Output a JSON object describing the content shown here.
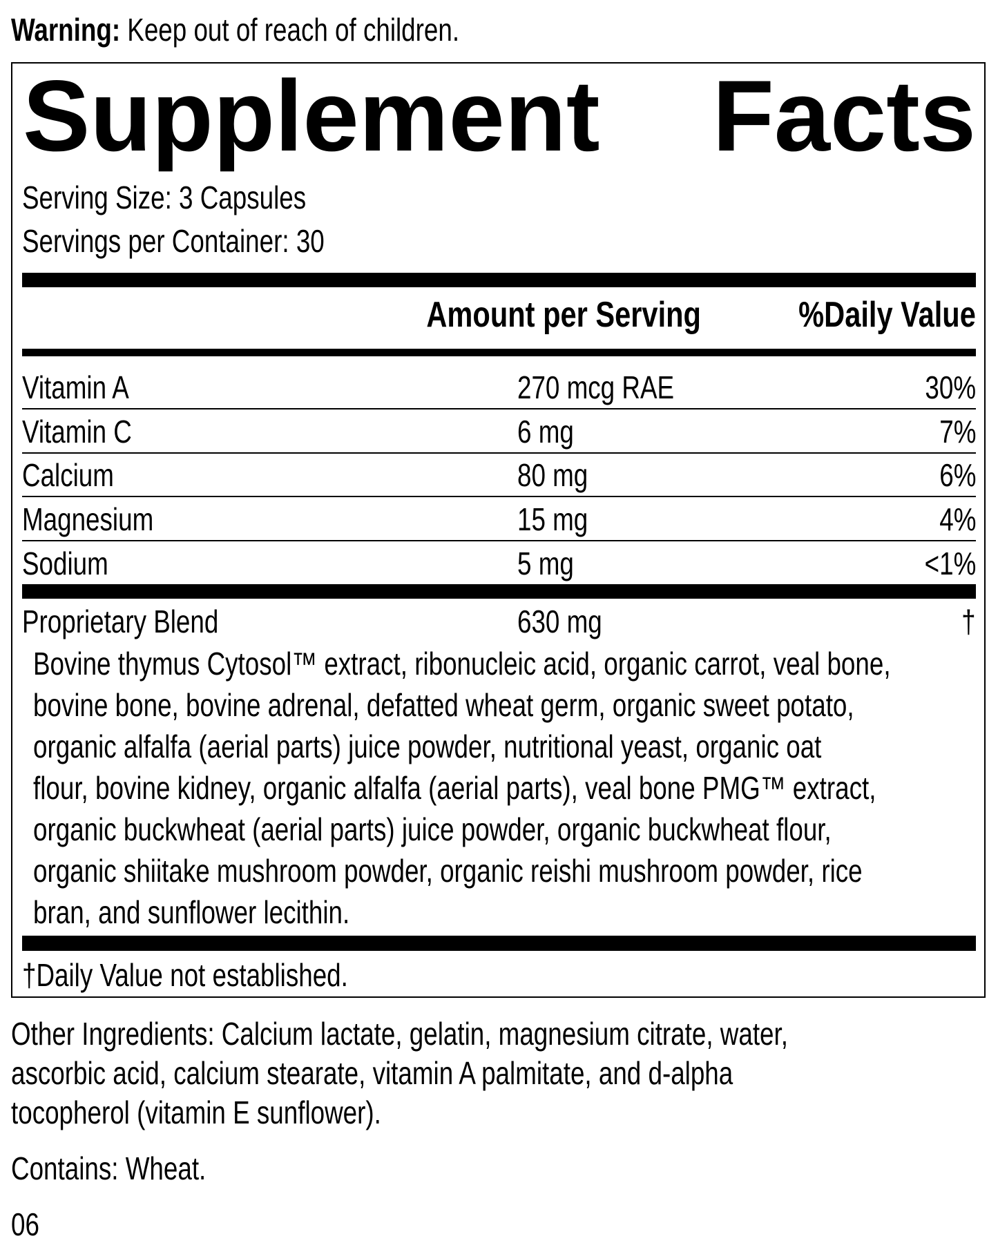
{
  "warning": {
    "label": "Warning:",
    "text": "Keep out of reach of children."
  },
  "title": {
    "word1": "Supplement",
    "word2": "Facts"
  },
  "serving_size": "Serving Size: 3 Capsules",
  "servings_per_container": "Servings per Container: 30",
  "header": {
    "amount": "Amount per Serving",
    "daily_value": "%Daily Value"
  },
  "nutrients": [
    {
      "name": "Vitamin A",
      "amount": "270 mcg RAE",
      "dv": "30%"
    },
    {
      "name": "Vitamin C",
      "amount": "6 mg",
      "dv": "7%"
    },
    {
      "name": "Calcium",
      "amount": "80 mg",
      "dv": "6%"
    },
    {
      "name": "Magnesium",
      "amount": "15 mg",
      "dv": "4%"
    },
    {
      "name": "Sodium",
      "amount": "5 mg",
      "dv": "<1%"
    }
  ],
  "blend": {
    "name": "Proprietary Blend",
    "amount": "630 mg",
    "dv": "†",
    "lines": [
      "Bovine thymus Cytosol™ extract, ribonucleic acid, organic carrot, veal bone,",
      "bovine bone, bovine adrenal, defatted wheat germ, organic sweet potato,",
      "organic alfalfa (aerial parts) juice powder, nutritional yeast, organic oat",
      "flour, bovine kidney, organic alfalfa (aerial parts), veal bone PMG™ extract,",
      "organic buckwheat (aerial parts) juice powder, organic buckwheat flour,",
      "organic shiitake mushroom powder, organic reishi mushroom powder, rice",
      "bran, and sunflower lecithin."
    ]
  },
  "footnote": "†Daily Value not established.",
  "other_ingredients": [
    "Other Ingredients: Calcium lactate, gelatin, magnesium citrate, water,",
    "ascorbic acid, calcium stearate, vitamin A palmitate, and d-alpha",
    "tocopherol (vitamin E sunflower)."
  ],
  "contains": "Contains: Wheat.",
  "code": "06"
}
